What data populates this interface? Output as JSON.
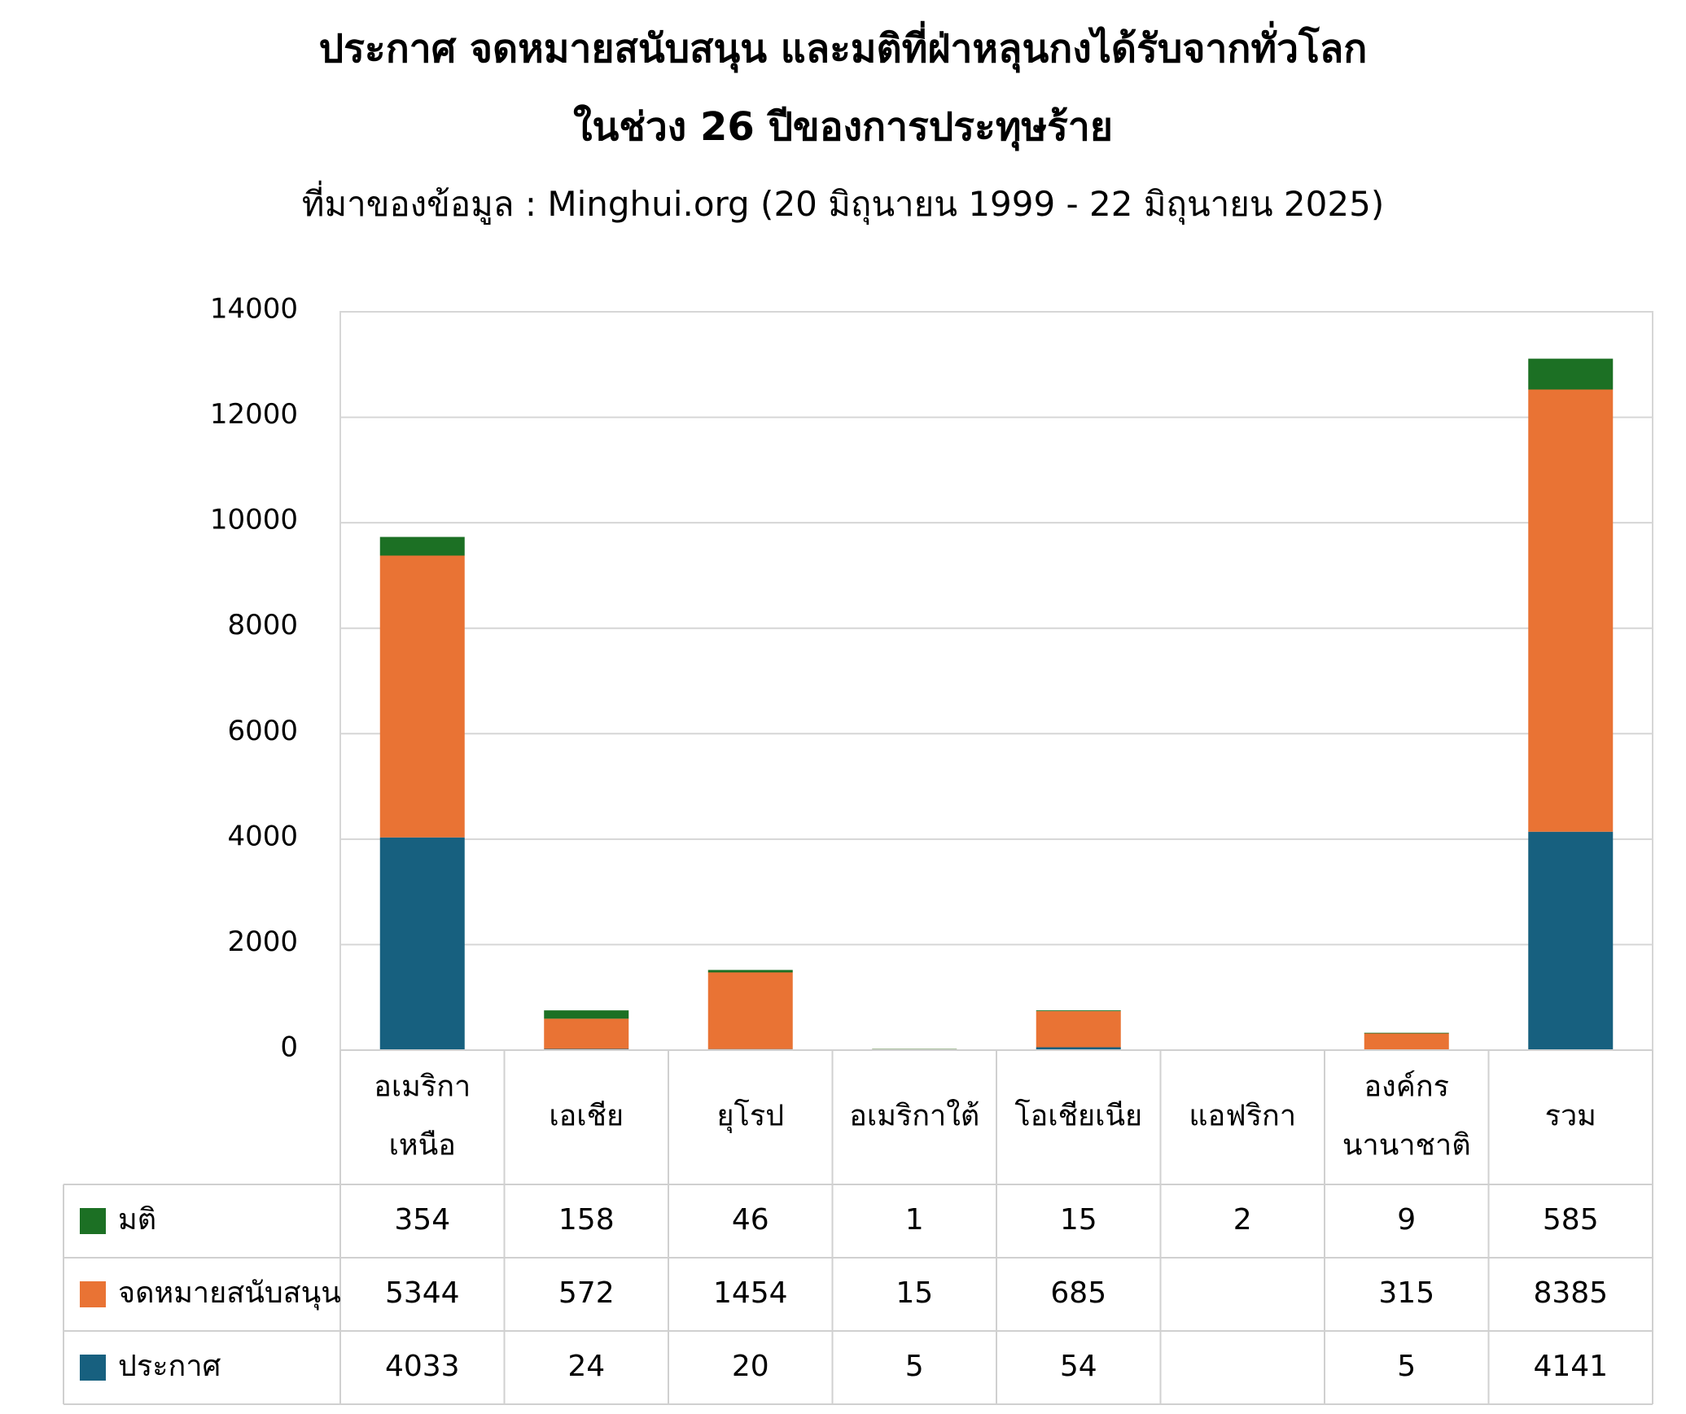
{
  "title_line1": "ประกาศ จดหมายสนับสนุน และมติที่ฝ่าหลุนกงได้รับจากทั่วโลก",
  "title_line2": "ในช่วง 26 ปีของการประทุษร้าย",
  "subtitle": "ที่มาของข้อมูล : Minghui.org (20 มิถุนายน 1999 - 22 มิถุนายน 2025)",
  "chart_data": {
    "type": "bar",
    "stacked": true,
    "categories": [
      [
        "อเมริกา",
        "เหนือ"
      ],
      [
        "เอเชีย"
      ],
      [
        "ยุโรป"
      ],
      [
        "อเมริกาใต้"
      ],
      [
        "โอเชียเนีย"
      ],
      [
        "แอฟริกา"
      ],
      [
        "องค์กร",
        "นานาชาติ"
      ],
      [
        "รวม"
      ]
    ],
    "ylim": [
      0,
      14000
    ],
    "yticks": [
      0,
      2000,
      4000,
      6000,
      8000,
      10000,
      12000,
      14000
    ],
    "grid": true,
    "legend_placement": "data-table",
    "series": [
      {
        "name": "ประกาศ",
        "color": "#17607f",
        "values": [
          4033,
          24,
          20,
          5,
          54,
          null,
          5,
          4141
        ]
      },
      {
        "name": "จดหมายสนับสนุน",
        "color": "#e97334",
        "values": [
          5344,
          572,
          1454,
          15,
          685,
          null,
          315,
          8385
        ]
      },
      {
        "name": "มติ",
        "color": "#1c7024",
        "values": [
          354,
          158,
          46,
          1,
          15,
          2,
          9,
          585
        ]
      }
    ],
    "table_row_order": [
      "มติ",
      "จดหมายสนับสนุน",
      "ประกาศ"
    ]
  }
}
